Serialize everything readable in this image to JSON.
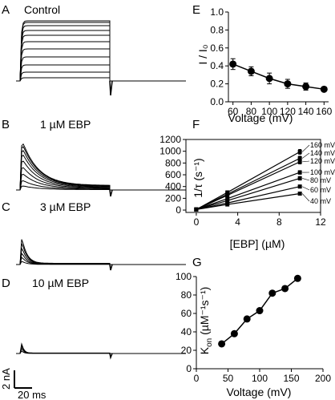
{
  "panel_letters": {
    "A": "A",
    "B": "B",
    "C": "C",
    "D": "D",
    "E": "E",
    "F": "F",
    "G": "G"
  },
  "trace_titles": {
    "A": "Control",
    "B": "1 µM EBP",
    "C": "3 µM EBP",
    "D": "10 µM EBP"
  },
  "scale_bar": {
    "current": "2 nA",
    "time": "20 ms"
  },
  "colors": {
    "ink": "#000000",
    "background": "#ffffff"
  },
  "chart_data": [
    {
      "id": "E",
      "type": "line",
      "xlabel": "Voltage (mV)",
      "ylabel": "I / I₀",
      "xlim": [
        55,
        165
      ],
      "ylim": [
        0,
        1.0
      ],
      "xticks": [
        60,
        80,
        100,
        120,
        140,
        160
      ],
      "yticks": [
        0.0,
        0.2,
        0.4,
        0.6,
        0.8,
        1.0
      ],
      "ytick_labels": [
        "0.0",
        "0.2",
        "0.4",
        "0.6",
        "0.8",
        "1.0"
      ],
      "x": [
        60,
        80,
        100,
        120,
        140,
        160
      ],
      "y": [
        0.42,
        0.34,
        0.26,
        0.2,
        0.17,
        0.14
      ],
      "yerr": [
        0.06,
        0.05,
        0.06,
        0.05,
        0.04,
        0.0
      ],
      "marker": "filled-circle",
      "grid": false
    },
    {
      "id": "F",
      "type": "line",
      "xlabel": "[EBP] (µM)",
      "ylabel": "1/τ (s⁻¹)",
      "xlim": [
        -1,
        12
      ],
      "ylim": [
        -40,
        1200
      ],
      "xticks": [
        0,
        4,
        8,
        12
      ],
      "yticks": [
        0,
        200,
        400,
        600,
        800,
        1000,
        1200
      ],
      "x": [
        0,
        3,
        10
      ],
      "series": [
        {
          "name": "160 mV",
          "values": [
            10,
            300,
            990
          ],
          "yerr": [
            0,
            25,
            40
          ]
        },
        {
          "name": "140 mV",
          "values": [
            10,
            270,
            880
          ],
          "yerr": [
            0,
            20,
            35
          ]
        },
        {
          "name": "120 mV",
          "values": [
            10,
            250,
            820
          ],
          "yerr": [
            0,
            20,
            35
          ]
        },
        {
          "name": "100 mV",
          "values": [
            10,
            195,
            640
          ],
          "yerr": [
            0,
            15,
            30
          ]
        },
        {
          "name": "80 mV",
          "values": [
            10,
            160,
            540
          ],
          "yerr": [
            0,
            15,
            30
          ]
        },
        {
          "name": "60 mV",
          "values": [
            10,
            120,
            400
          ],
          "yerr": [
            0,
            10,
            25
          ]
        },
        {
          "name": "40 mV",
          "values": [
            10,
            95,
            280
          ],
          "yerr": [
            0,
            10,
            20
          ]
        }
      ],
      "marker": "filled-square",
      "grid": false
    },
    {
      "id": "G",
      "type": "line",
      "xlabel": "Voltage (mV)",
      "ylabel": "K",
      "ylabel_sub": "on",
      "ylabel_rest": " (µM⁻¹s⁻¹)",
      "xlim": [
        0,
        200
      ],
      "ylim": [
        0,
        100
      ],
      "xticks": [
        0,
        50,
        100,
        150,
        200
      ],
      "yticks": [
        0,
        20,
        40,
        60,
        80,
        100
      ],
      "x": [
        40,
        60,
        80,
        100,
        120,
        140,
        160
      ],
      "y": [
        27,
        38,
        54,
        63,
        82,
        87,
        98
      ],
      "marker": "filled-circle",
      "grid": false
    }
  ]
}
